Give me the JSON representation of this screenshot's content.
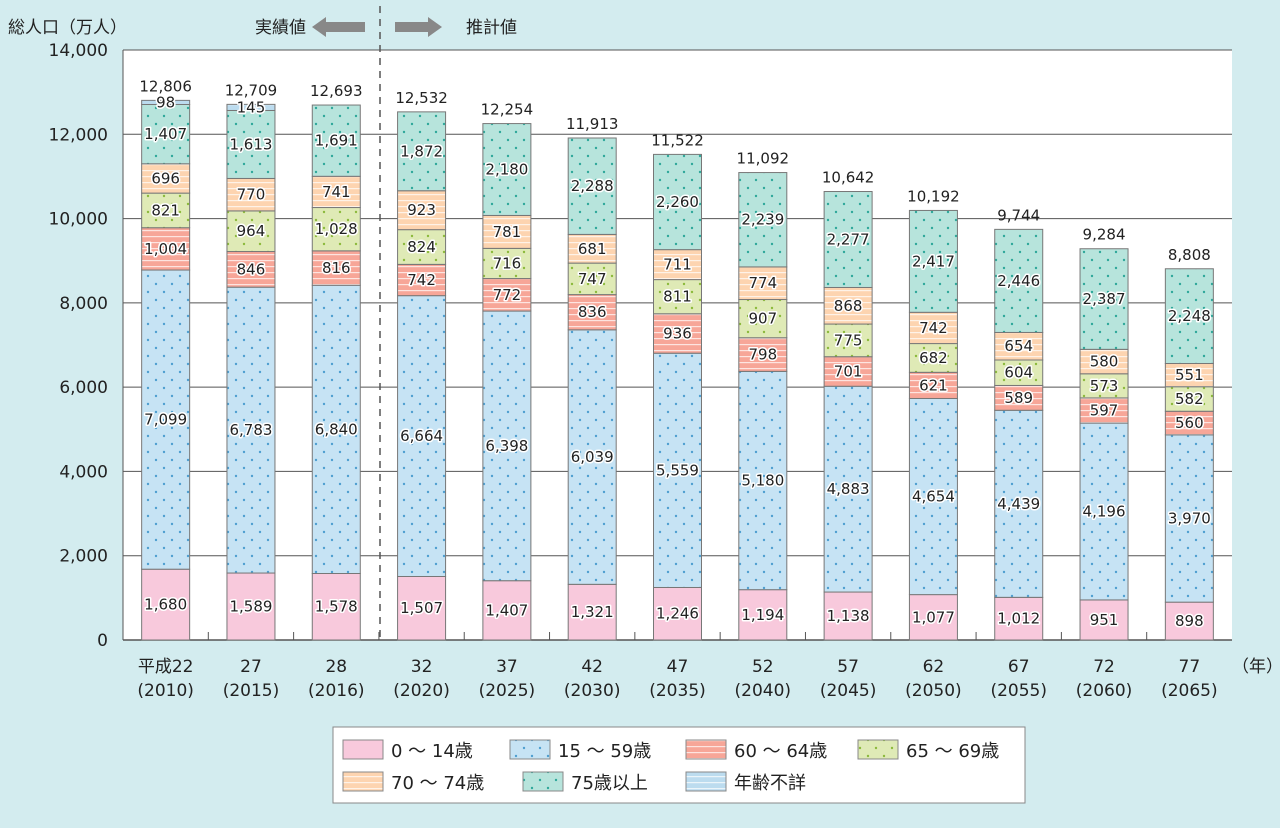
{
  "chart_data": {
    "type": "bar",
    "stacked": true,
    "ylabel": "総人口（万人）",
    "xunit": "（年）",
    "ylim": [
      0,
      14000
    ],
    "yticks": [
      "0",
      "2,000",
      "4,000",
      "6,000",
      "8,000",
      "10,000",
      "12,000",
      "14,000"
    ],
    "grid": true,
    "annotations": {
      "actual": "実績値",
      "projection": "推計値"
    },
    "categories": [
      [
        "平成22",
        "(2010)"
      ],
      [
        "27",
        "(2015)"
      ],
      [
        "28",
        "(2016)"
      ],
      [
        "32",
        "(2020)"
      ],
      [
        "37",
        "(2025)"
      ],
      [
        "42",
        "(2030)"
      ],
      [
        "47",
        "(2035)"
      ],
      [
        "52",
        "(2040)"
      ],
      [
        "57",
        "(2045)"
      ],
      [
        "62",
        "(2050)"
      ],
      [
        "67",
        "(2055)"
      ],
      [
        "72",
        "(2060)"
      ],
      [
        "77",
        "(2065)"
      ]
    ],
    "totals": [
      12806,
      12709,
      12693,
      12532,
      12254,
      11913,
      11522,
      11092,
      10642,
      10192,
      9744,
      9284,
      8808
    ],
    "series": [
      {
        "name": "0 ～ 14歳",
        "color": "#f8c9dc",
        "pattern": "plain",
        "values": [
          1680,
          1589,
          1578,
          1507,
          1407,
          1321,
          1246,
          1194,
          1138,
          1077,
          1012,
          951,
          898
        ]
      },
      {
        "name": "15 ～ 59歳",
        "color": "#c6e3f4",
        "pattern": "dots",
        "values": [
          7099,
          6783,
          6840,
          6664,
          6398,
          6039,
          5559,
          5180,
          4883,
          4654,
          4439,
          4196,
          3970
        ]
      },
      {
        "name": "60 ～ 64歳",
        "color": "#f7a698",
        "pattern": "stripes",
        "values": [
          1004,
          846,
          816,
          742,
          772,
          836,
          936,
          798,
          701,
          621,
          589,
          597,
          560
        ]
      },
      {
        "name": "65 ～ 69歳",
        "color": "#dfeab6",
        "pattern": "dots",
        "values": [
          821,
          964,
          1028,
          824,
          716,
          747,
          811,
          907,
          775,
          682,
          604,
          573,
          582
        ]
      },
      {
        "name": "70 ～ 74歳",
        "color": "#fdd4b0",
        "pattern": "stripes",
        "values": [
          696,
          770,
          741,
          923,
          781,
          681,
          711,
          774,
          868,
          742,
          654,
          580,
          551
        ]
      },
      {
        "name": "75歳以上",
        "color": "#b7e4dc",
        "pattern": "dots",
        "values": [
          1407,
          1613,
          1691,
          1872,
          2180,
          2288,
          2260,
          2239,
          2277,
          2417,
          2446,
          2387,
          2248
        ]
      },
      {
        "name": "年齢不詳",
        "color": "#bcdcef",
        "pattern": "stripes",
        "values": [
          98,
          145,
          null,
          null,
          null,
          null,
          null,
          null,
          null,
          null,
          null,
          null,
          null
        ]
      }
    ],
    "legend_placement": "bottom"
  }
}
